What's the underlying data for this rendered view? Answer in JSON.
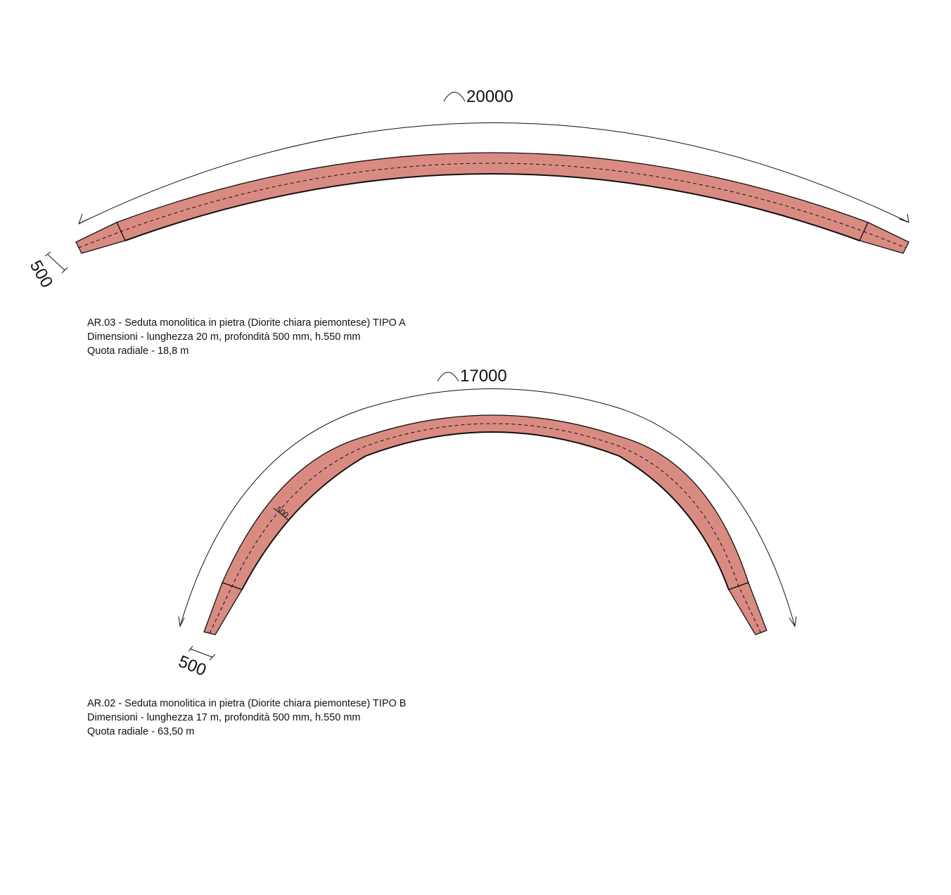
{
  "colors": {
    "bench_fill": "#d98b82",
    "line": "#111111"
  },
  "bench_a": {
    "arc_length_label": "20000",
    "depth_label": "500",
    "caption": {
      "line1": "AR.03 - Seduta monolitica in pietra (Diorite chiara piemontese) TIPO A",
      "line2": "Dimensioni - lunghezza 20 m, profondità 500 mm, h.550 mm",
      "line3": "Quota radiale - 18,8 m"
    }
  },
  "bench_b": {
    "arc_length_label": "17000",
    "depth_label": "500",
    "inner_depth_label": "500",
    "caption": {
      "line1": "AR.02 - Seduta monolitica in pietra (Diorite chiara piemontese) TIPO B",
      "line2": "Dimensioni - lunghezza 17 m, profondità 500 mm, h.550 mm",
      "line3": "Quota radiale - 63,50 m"
    }
  }
}
